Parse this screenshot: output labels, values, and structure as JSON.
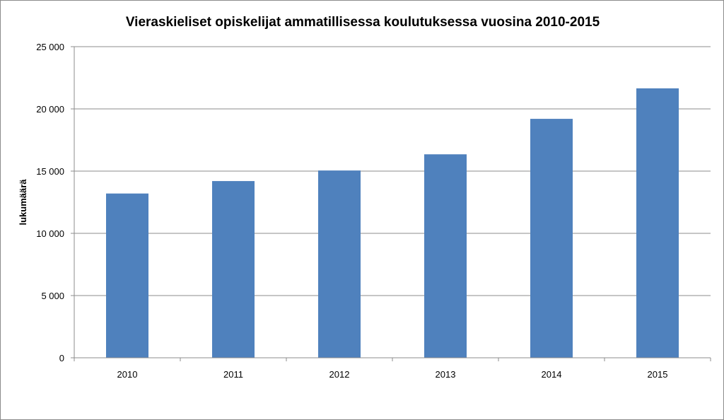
{
  "chart_data": {
    "type": "bar",
    "title": "Vieraskieliset  opiskelijat ammatillisessa koulutuksessa vuosina 2010-2015",
    "xlabel": "",
    "ylabel": "lukumäärä",
    "categories": [
      "2010",
      "2011",
      "2012",
      "2013",
      "2014",
      "2015"
    ],
    "values": [
      13200,
      14200,
      15050,
      16350,
      19200,
      21650
    ],
    "ylim": [
      0,
      25000
    ],
    "yticks": [
      0,
      5000,
      10000,
      15000,
      20000,
      25000
    ],
    "ytick_labels": [
      "0",
      "5 000",
      "10 000",
      "15 000",
      "20 000",
      "25 000"
    ],
    "grid": true,
    "legend": "none",
    "colors": {
      "bar": "#4f81bd",
      "grid": "#8c8c8c",
      "axis": "#8c8c8c"
    }
  }
}
